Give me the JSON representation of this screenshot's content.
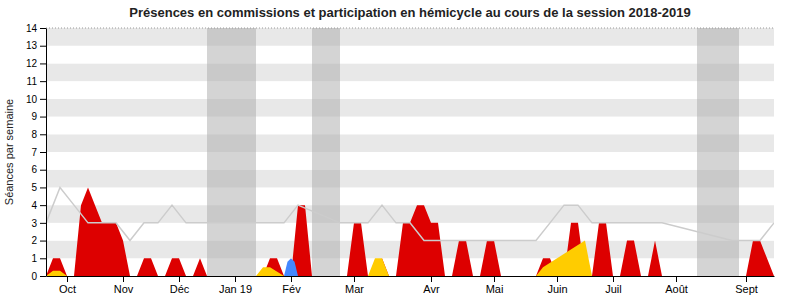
{
  "chart_data": {
    "type": "area",
    "title": "Présences en commissions et participation en hémicycle au cours de la session 2018-2019",
    "y_label": "Séances par semaine",
    "xlim": [
      0,
      52
    ],
    "ylim": [
      0,
      14
    ],
    "yticks": [
      0,
      1,
      2,
      3,
      4,
      5,
      6,
      7,
      8,
      9,
      10,
      11,
      12,
      13,
      14
    ],
    "xticks": [
      {
        "value": 1.5,
        "label": "Oct"
      },
      {
        "value": 5.5,
        "label": "Nov"
      },
      {
        "value": 9.5,
        "label": "Déc"
      },
      {
        "value": 13.5,
        "label": "Jan 19"
      },
      {
        "value": 17.5,
        "label": "Fév"
      },
      {
        "value": 22.0,
        "label": "Mar"
      },
      {
        "value": 27.5,
        "label": "Avr"
      },
      {
        "value": 32.0,
        "label": "Mai"
      },
      {
        "value": 36.5,
        "label": "Juin"
      },
      {
        "value": 40.5,
        "label": "Juil"
      },
      {
        "value": 45.0,
        "label": "Août"
      },
      {
        "value": 50.0,
        "label": "Sept"
      }
    ],
    "grid": true,
    "bands": [
      {
        "from": 11.5,
        "to": 15.0,
        "color": "#aaaaaa"
      },
      {
        "from": 19.0,
        "to": 21.0,
        "color": "#aaaaaa"
      },
      {
        "from": 46.5,
        "to": 49.5,
        "color": "#aaaaaa"
      }
    ],
    "reference_line": 14,
    "series": [
      {
        "type": "area",
        "color": "#dd0000",
        "x": [
          0,
          0.5,
          1.0,
          1.5,
          2.0,
          2.5,
          3.0,
          3.5,
          4.0,
          4.5,
          5.0,
          5.5,
          6.0,
          6.5,
          7.0,
          7.5,
          8.0,
          8.5,
          9.0,
          9.5,
          10.0,
          10.5,
          11.0,
          11.5,
          15.0,
          15.5,
          16.0,
          16.5,
          17.0,
          17.5,
          18.0,
          18.5,
          19.0,
          21.0,
          21.5,
          22.0,
          22.5,
          23.0,
          23.5,
          24.0,
          24.5,
          25.0,
          25.5,
          26.0,
          26.5,
          27.0,
          27.5,
          28.0,
          28.5,
          29.0,
          29.5,
          30.0,
          30.5,
          31.0,
          31.5,
          32.0,
          32.5,
          33.0,
          33.5,
          35.0,
          35.5,
          36.0,
          36.5,
          37.0,
          37.5,
          38.0,
          38.5,
          39.0,
          39.5,
          40.0,
          40.5,
          41.0,
          41.5,
          42.0,
          42.5,
          43.0,
          43.5,
          44.0,
          49.5,
          50.0,
          50.5,
          51.0,
          51.5,
          52.0
        ],
        "values": [
          0,
          1,
          1,
          0,
          0,
          4,
          5,
          4,
          3,
          3,
          3,
          2,
          0,
          0,
          1,
          1,
          0,
          0,
          1,
          1,
          0,
          0,
          1,
          0,
          0,
          0,
          1,
          1,
          0,
          0,
          4,
          4,
          0,
          0,
          0,
          3,
          3,
          0,
          0,
          1,
          0,
          0,
          3,
          3,
          4,
          4,
          3,
          3,
          0,
          0,
          2,
          2,
          0,
          0,
          2,
          2,
          0,
          0,
          0,
          0,
          1,
          1,
          0,
          0,
          3,
          3,
          0,
          0,
          3,
          3,
          0,
          0,
          2,
          2,
          0,
          0,
          2,
          0,
          0,
          0,
          2,
          2,
          1,
          0
        ]
      },
      {
        "type": "area",
        "color": "#ffcc00",
        "x": [
          0,
          0.5,
          1.0,
          1.5,
          11.5,
          15.0,
          15.5,
          16.0,
          17.0,
          17.5,
          23.0,
          23.5,
          24.0,
          24.5,
          35.0,
          35.5,
          38.5,
          39.0
        ],
        "values": [
          0,
          0.3,
          0.3,
          0,
          0,
          0,
          0.5,
          0.5,
          0,
          0,
          0,
          1.0,
          1.0,
          0,
          0,
          0.5,
          2.0,
          0
        ]
      },
      {
        "type": "area",
        "color": "#4488ff",
        "x": [
          17.0,
          17.25,
          17.5,
          17.75,
          18.0
        ],
        "values": [
          0,
          0.8,
          1.0,
          0.8,
          0
        ]
      },
      {
        "type": "line",
        "color": "#cccccc",
        "x": [
          0,
          1,
          2,
          3,
          4,
          5,
          6,
          7,
          8,
          9,
          10,
          11,
          15,
          16,
          17,
          18,
          21,
          22,
          23,
          24,
          25,
          26,
          27,
          28,
          29,
          30,
          31,
          32,
          33,
          35,
          36,
          37,
          38,
          39,
          40,
          41,
          42,
          43,
          44,
          49,
          50,
          51,
          52
        ],
        "values": [
          3,
          5,
          4,
          3,
          3,
          3,
          2,
          3,
          3,
          4,
          3,
          3,
          3,
          3,
          3,
          4,
          3,
          3,
          3,
          4,
          3,
          3,
          2,
          2,
          2,
          2,
          2,
          2,
          2,
          2,
          3,
          4,
          4,
          3,
          3,
          3,
          3,
          3,
          3,
          2,
          2,
          2,
          3
        ]
      }
    ]
  }
}
